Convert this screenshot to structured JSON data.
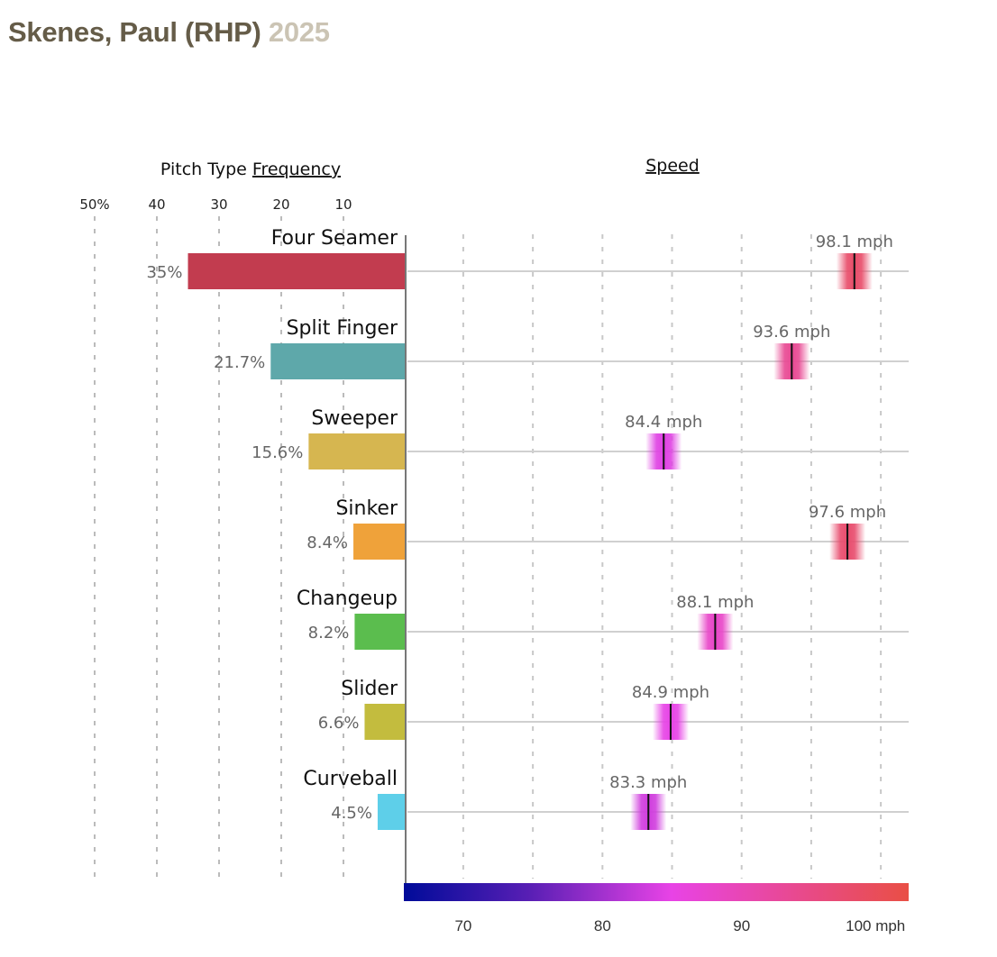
{
  "header": {
    "player": "Skenes, Paul (RHP)",
    "season": "2025"
  },
  "chart_data": [
    {
      "type": "bar",
      "orientation": "horizontal-leftward",
      "title": "Pitch Type Frequency",
      "title_plain": "Pitch Type",
      "title_link": "Frequency",
      "xlim": [
        0,
        50
      ],
      "tick_values": [
        50,
        40,
        30,
        20,
        10
      ],
      "tick_labels": [
        "50%",
        "40",
        "30",
        "20",
        "10"
      ],
      "grid": true,
      "categories": [
        "Four Seamer",
        "Split Finger",
        "Sweeper",
        "Sinker",
        "Changeup",
        "Slider",
        "Curveball"
      ],
      "values": [
        35,
        21.7,
        15.6,
        8.4,
        8.2,
        6.6,
        4.5
      ],
      "value_labels": [
        "35%",
        "21.7%",
        "15.6%",
        "8.4%",
        "8.2%",
        "6.6%",
        "4.5%"
      ],
      "colors": [
        "#c23c4f",
        "#5ea8aa",
        "#d6b650",
        "#efa23a",
        "#5bbd4e",
        "#c3bc3e",
        "#5ecfe9"
      ]
    },
    {
      "type": "scatter",
      "title": "Speed",
      "xlim": [
        65.86,
        102
      ],
      "grid_values": [
        70,
        75,
        80,
        85,
        90,
        95,
        100
      ],
      "grid": true,
      "categories": [
        "Four Seamer",
        "Split Finger",
        "Sweeper",
        "Sinker",
        "Changeup",
        "Slider",
        "Curveball"
      ],
      "values": [
        98.1,
        93.6,
        84.4,
        97.6,
        88.1,
        84.9,
        83.3
      ],
      "value_labels": [
        "98.1 mph",
        "93.6 mph",
        "84.4 mph",
        "97.6 mph",
        "88.1 mph",
        "84.9 mph",
        "83.3 mph"
      ],
      "colorscale": {
        "range": [
          65.86,
          102
        ],
        "stops": [
          {
            "value": 65.86,
            "color": "#000b99"
          },
          {
            "value": 75,
            "color": "#5a1fb5"
          },
          {
            "value": 85,
            "color": "#e843e6"
          },
          {
            "value": 95,
            "color": "#e84a85"
          },
          {
            "value": 102,
            "color": "#e94f45"
          }
        ],
        "tick_values": [
          70,
          80,
          90,
          100
        ],
        "tick_labels": [
          "70",
          "80",
          "90",
          "100 mph"
        ]
      }
    }
  ]
}
